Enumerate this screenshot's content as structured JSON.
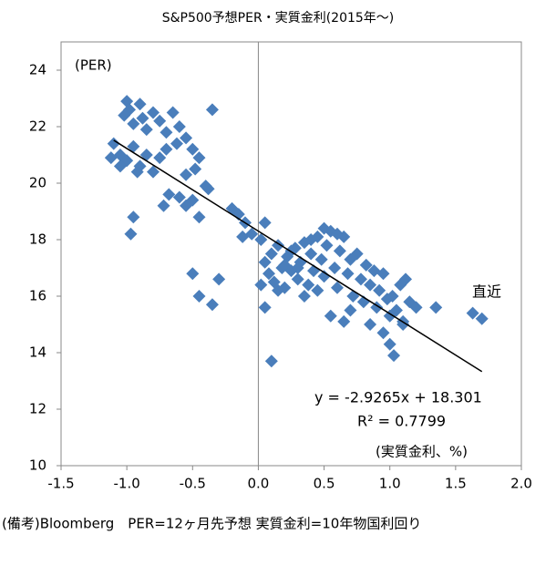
{
  "chart_data": {
    "type": "scatter",
    "title": "S&P500予想PER・実質金利(2015年～)",
    "y_label": "(PER)",
    "x_label": "(実質金利、%)",
    "annotation": "直近",
    "equation": "y = -2.9265x + 18.301",
    "r_squared": "R² = 0.7799",
    "footnote": "(備考)Bloomberg　PER=12ヶ月先予想 実質金利=10年物国利回り",
    "color": "#4a7ebb",
    "annotation_color": "#e00000",
    "xlim": [
      -1.5,
      2.0
    ],
    "ylim": [
      10,
      25
    ],
    "xticks": [
      -1.5,
      {
        "value": -1.0,
        "label": "-1.0"
      },
      -0.5,
      {
        "value": 0.0,
        "label": "0.0"
      },
      0.5,
      {
        "value": 1.0,
        "label": "1.0"
      },
      1.5,
      {
        "value": 2.0,
        "label": "2.0"
      }
    ],
    "yticks": [
      10,
      12,
      14,
      16,
      18,
      20,
      22,
      24
    ],
    "trendline": {
      "x": [
        -1.1,
        1.7
      ],
      "y": [
        21.52,
        13.33
      ]
    },
    "x": [
      -1.0,
      -0.98,
      -1.02,
      -0.95,
      -0.9,
      -0.88,
      -0.85,
      -0.8,
      -0.75,
      -0.7,
      -0.65,
      -0.6,
      -0.55,
      -0.35,
      -1.1,
      -1.05,
      -1.0,
      -0.95,
      -0.9,
      -0.85,
      -0.8,
      -0.75,
      -0.7,
      -0.62,
      -0.5,
      -0.45,
      -0.48,
      -1.12,
      -1.05,
      -0.92,
      -0.55,
      -0.68,
      -0.6,
      -0.55,
      -0.5,
      -0.45,
      -0.4,
      -0.38,
      -0.72,
      -0.95,
      -0.97,
      -0.5,
      -0.45,
      -0.3,
      -0.35,
      -0.2,
      -0.15,
      -0.1,
      -0.05,
      0.02,
      0.05,
      -0.12,
      0.05,
      0.08,
      0.1,
      0.12,
      0.15,
      0.18,
      0.2,
      0.22,
      0.25,
      0.28,
      0.3,
      0.32,
      0.35,
      0.38,
      0.4,
      0.42,
      0.45,
      0.48,
      0.5,
      0.52,
      0.55,
      0.58,
      0.6,
      0.62,
      0.65,
      0.68,
      0.7,
      0.72,
      0.75,
      0.78,
      0.8,
      0.82,
      0.85,
      0.88,
      0.9,
      0.92,
      0.95,
      0.98,
      1.0,
      1.02,
      1.05,
      1.08,
      1.1,
      1.12,
      1.15,
      1.2,
      0.55,
      0.65,
      0.7,
      0.85,
      0.95,
      1.0,
      1.03,
      1.1,
      0.02,
      0.05,
      0.1,
      0.15,
      0.3,
      0.35,
      0.45,
      0.5,
      0.6,
      0.25,
      0.4,
      0.2,
      1.35,
      1.63,
      1.7
    ],
    "values": [
      22.9,
      22.6,
      22.4,
      22.1,
      22.8,
      22.3,
      21.9,
      22.5,
      22.2,
      21.8,
      22.5,
      22.0,
      21.6,
      22.6,
      21.4,
      21.0,
      20.8,
      21.3,
      20.6,
      21.0,
      20.4,
      20.9,
      21.2,
      21.4,
      21.2,
      20.9,
      20.5,
      20.9,
      20.6,
      20.4,
      20.3,
      19.6,
      19.5,
      19.2,
      19.4,
      18.8,
      19.9,
      19.8,
      19.2,
      18.8,
      18.2,
      16.8,
      16.0,
      16.6,
      15.7,
      19.1,
      18.9,
      18.6,
      18.2,
      18.0,
      18.6,
      18.1,
      17.2,
      16.8,
      17.5,
      16.5,
      17.8,
      17.0,
      16.3,
      17.4,
      16.9,
      17.7,
      16.6,
      17.2,
      17.9,
      16.4,
      17.5,
      16.9,
      18.1,
      17.3,
      16.7,
      17.8,
      18.3,
      17.0,
      16.3,
      17.6,
      18.1,
      16.8,
      17.3,
      16.0,
      17.5,
      16.6,
      15.8,
      17.1,
      16.4,
      16.9,
      15.6,
      16.2,
      16.8,
      15.9,
      15.3,
      16.0,
      15.5,
      16.4,
      15.1,
      16.6,
      15.8,
      15.6,
      15.3,
      15.1,
      15.5,
      15.0,
      14.7,
      14.3,
      13.9,
      15.0,
      16.4,
      15.6,
      13.7,
      16.2,
      17.0,
      16.0,
      16.2,
      18.4,
      18.2,
      17.6,
      18.0,
      17.1,
      15.6,
      15.4,
      15.2
    ]
  }
}
